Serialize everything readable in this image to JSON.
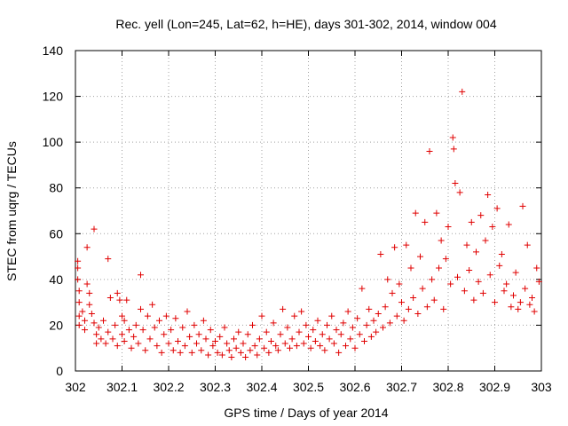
{
  "chart_data": {
    "type": "scatter",
    "title": "Rec. yell (Lon=245, Lat=62, h=HE), days 301-302, 2014, window 004",
    "xlabel": "GPS time / Days of year 2014",
    "ylabel": "STEC from uqrg / TECUs",
    "xlim": [
      302,
      303
    ],
    "ylim": [
      0,
      140
    ],
    "xticks": [
      302,
      302.1,
      302.2,
      302.3,
      302.4,
      302.5,
      302.6,
      302.7,
      302.8,
      302.9,
      303
    ],
    "xtick_labels": [
      "302",
      "302.1",
      "302.2",
      "302.3",
      "302.4",
      "302.5",
      "302.6",
      "302.7",
      "302.8",
      "302.9",
      "303"
    ],
    "yticks": [
      0,
      20,
      40,
      60,
      80,
      100,
      120,
      140
    ],
    "ytick_labels": [
      "0",
      "20",
      "40",
      "60",
      "80",
      "100",
      "120",
      "140"
    ],
    "grid": true,
    "marker": "+",
    "color": "#e00000",
    "points": [
      [
        302.005,
        48
      ],
      [
        302.005,
        45
      ],
      [
        302.005,
        40
      ],
      [
        302.008,
        35
      ],
      [
        302.008,
        30
      ],
      [
        302.008,
        24
      ],
      [
        302.008,
        20
      ],
      [
        302.015,
        26
      ],
      [
        302.02,
        22
      ],
      [
        302.02,
        18
      ],
      [
        302.025,
        54
      ],
      [
        302.025,
        38
      ],
      [
        302.03,
        34
      ],
      [
        302.03,
        29
      ],
      [
        302.035,
        25
      ],
      [
        302.04,
        62
      ],
      [
        302.04,
        21
      ],
      [
        302.045,
        16
      ],
      [
        302.045,
        12
      ],
      [
        302.05,
        19
      ],
      [
        302.055,
        14
      ],
      [
        302.06,
        22
      ],
      [
        302.065,
        12
      ],
      [
        302.07,
        49
      ],
      [
        302.07,
        17
      ],
      [
        302.075,
        32
      ],
      [
        302.08,
        14
      ],
      [
        302.085,
        20
      ],
      [
        302.09,
        34
      ],
      [
        302.09,
        11
      ],
      [
        302.095,
        31
      ],
      [
        302.1,
        24
      ],
      [
        302.1,
        16
      ],
      [
        302.105,
        22
      ],
      [
        302.105,
        13
      ],
      [
        302.11,
        31
      ],
      [
        302.115,
        18
      ],
      [
        302.12,
        10
      ],
      [
        302.125,
        15
      ],
      [
        302.13,
        20
      ],
      [
        302.135,
        12
      ],
      [
        302.14,
        42
      ],
      [
        302.14,
        27
      ],
      [
        302.145,
        18
      ],
      [
        302.15,
        9
      ],
      [
        302.155,
        24
      ],
      [
        302.16,
        14
      ],
      [
        302.165,
        29
      ],
      [
        302.17,
        19
      ],
      [
        302.175,
        11
      ],
      [
        302.18,
        22
      ],
      [
        302.185,
        8
      ],
      [
        302.19,
        16
      ],
      [
        302.195,
        24
      ],
      [
        302.2,
        12
      ],
      [
        302.205,
        18
      ],
      [
        302.21,
        9
      ],
      [
        302.215,
        23
      ],
      [
        302.22,
        13
      ],
      [
        302.225,
        8
      ],
      [
        302.23,
        19
      ],
      [
        302.235,
        11
      ],
      [
        302.24,
        26
      ],
      [
        302.245,
        15
      ],
      [
        302.25,
        8
      ],
      [
        302.255,
        20
      ],
      [
        302.26,
        12
      ],
      [
        302.265,
        16
      ],
      [
        302.27,
        9
      ],
      [
        302.275,
        22
      ],
      [
        302.28,
        14
      ],
      [
        302.285,
        7
      ],
      [
        302.29,
        18
      ],
      [
        302.295,
        11
      ],
      [
        302.3,
        13
      ],
      [
        302.305,
        8
      ],
      [
        302.31,
        15
      ],
      [
        302.315,
        7
      ],
      [
        302.32,
        19
      ],
      [
        302.325,
        12
      ],
      [
        302.33,
        9
      ],
      [
        302.335,
        6
      ],
      [
        302.34,
        14
      ],
      [
        302.345,
        10
      ],
      [
        302.35,
        17
      ],
      [
        302.355,
        8
      ],
      [
        302.36,
        12
      ],
      [
        302.365,
        6
      ],
      [
        302.37,
        16
      ],
      [
        302.375,
        9
      ],
      [
        302.38,
        20
      ],
      [
        302.385,
        11
      ],
      [
        302.39,
        7
      ],
      [
        302.395,
        14
      ],
      [
        302.4,
        24
      ],
      [
        302.405,
        10
      ],
      [
        302.41,
        17
      ],
      [
        302.415,
        8
      ],
      [
        302.42,
        13
      ],
      [
        302.425,
        21
      ],
      [
        302.43,
        11
      ],
      [
        302.435,
        9
      ],
      [
        302.44,
        16
      ],
      [
        302.445,
        27
      ],
      [
        302.45,
        12
      ],
      [
        302.455,
        19
      ],
      [
        302.46,
        10
      ],
      [
        302.465,
        14
      ],
      [
        302.47,
        24
      ],
      [
        302.475,
        11
      ],
      [
        302.48,
        17
      ],
      [
        302.485,
        26
      ],
      [
        302.49,
        12
      ],
      [
        302.495,
        20
      ],
      [
        302.5,
        15
      ],
      [
        302.505,
        10
      ],
      [
        302.51,
        18
      ],
      [
        302.515,
        13
      ],
      [
        302.52,
        22
      ],
      [
        302.525,
        11
      ],
      [
        302.53,
        16
      ],
      [
        302.535,
        9
      ],
      [
        302.54,
        20
      ],
      [
        302.545,
        14
      ],
      [
        302.55,
        24
      ],
      [
        302.555,
        12
      ],
      [
        302.56,
        18
      ],
      [
        302.565,
        8
      ],
      [
        302.57,
        16
      ],
      [
        302.575,
        21
      ],
      [
        302.58,
        11
      ],
      [
        302.585,
        26
      ],
      [
        302.59,
        14
      ],
      [
        302.595,
        19
      ],
      [
        302.6,
        10
      ],
      [
        302.605,
        23
      ],
      [
        302.61,
        16
      ],
      [
        302.615,
        36
      ],
      [
        302.62,
        13
      ],
      [
        302.625,
        20
      ],
      [
        302.63,
        27
      ],
      [
        302.635,
        15
      ],
      [
        302.64,
        22
      ],
      [
        302.645,
        17
      ],
      [
        302.65,
        25
      ],
      [
        302.655,
        51
      ],
      [
        302.66,
        19
      ],
      [
        302.665,
        28
      ],
      [
        302.67,
        40
      ],
      [
        302.675,
        21
      ],
      [
        302.68,
        34
      ],
      [
        302.685,
        54
      ],
      [
        302.69,
        24
      ],
      [
        302.695,
        38
      ],
      [
        302.7,
        30
      ],
      [
        302.705,
        22
      ],
      [
        302.71,
        55
      ],
      [
        302.715,
        27
      ],
      [
        302.72,
        45
      ],
      [
        302.725,
        32
      ],
      [
        302.73,
        69
      ],
      [
        302.735,
        25
      ],
      [
        302.74,
        50
      ],
      [
        302.745,
        36
      ],
      [
        302.75,
        65
      ],
      [
        302.755,
        28
      ],
      [
        302.76,
        96
      ],
      [
        302.765,
        40
      ],
      [
        302.77,
        31
      ],
      [
        302.775,
        69
      ],
      [
        302.78,
        45
      ],
      [
        302.785,
        57
      ],
      [
        302.79,
        27
      ],
      [
        302.795,
        49
      ],
      [
        302.8,
        63
      ],
      [
        302.805,
        38
      ],
      [
        302.81,
        102
      ],
      [
        302.812,
        97
      ],
      [
        302.815,
        82
      ],
      [
        302.82,
        41
      ],
      [
        302.825,
        78
      ],
      [
        302.83,
        122
      ],
      [
        302.835,
        35
      ],
      [
        302.84,
        55
      ],
      [
        302.845,
        44
      ],
      [
        302.85,
        65
      ],
      [
        302.855,
        31
      ],
      [
        302.86,
        52
      ],
      [
        302.865,
        39
      ],
      [
        302.87,
        68
      ],
      [
        302.875,
        34
      ],
      [
        302.88,
        57
      ],
      [
        302.885,
        77
      ],
      [
        302.89,
        42
      ],
      [
        302.895,
        63
      ],
      [
        302.9,
        30
      ],
      [
        302.905,
        71
      ],
      [
        302.91,
        46
      ],
      [
        302.915,
        51
      ],
      [
        302.92,
        35
      ],
      [
        302.925,
        38
      ],
      [
        302.93,
        64
      ],
      [
        302.935,
        28
      ],
      [
        302.94,
        33
      ],
      [
        302.945,
        43
      ],
      [
        302.95,
        27
      ],
      [
        302.955,
        30
      ],
      [
        302.96,
        72
      ],
      [
        302.965,
        36
      ],
      [
        302.97,
        55
      ],
      [
        302.975,
        29
      ],
      [
        302.98,
        32
      ],
      [
        302.985,
        26
      ],
      [
        302.99,
        45
      ],
      [
        302.995,
        39
      ]
    ]
  }
}
